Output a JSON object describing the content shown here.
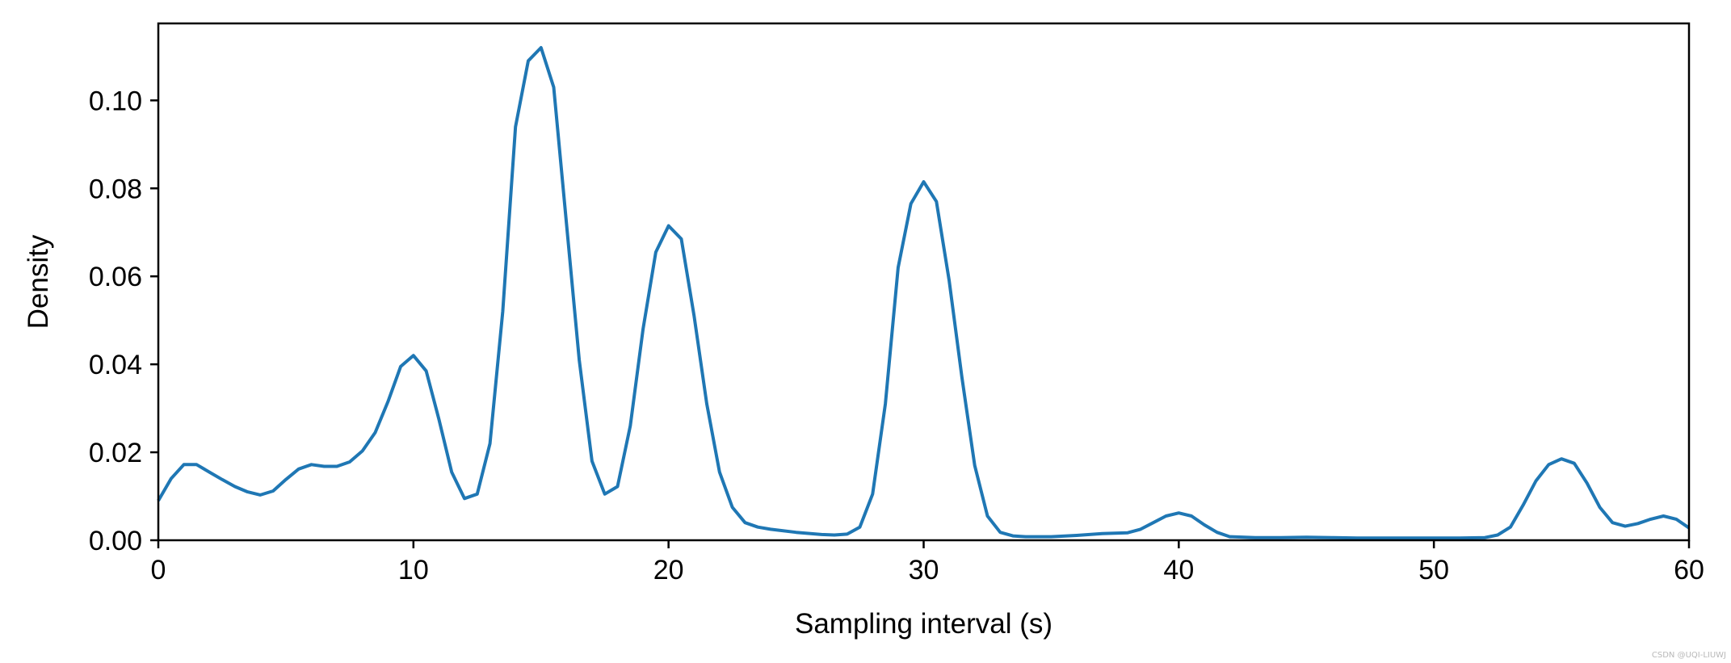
{
  "watermark": "CSDN @UQI-LIUWJ",
  "chart_data": {
    "type": "line",
    "title": "",
    "xlabel": "Sampling interval (s)",
    "ylabel": "Density",
    "xlim": [
      0,
      60
    ],
    "ylim": [
      0,
      0.1175
    ],
    "xticks": [
      0,
      10,
      20,
      30,
      40,
      50,
      60
    ],
    "xtick_labels": [
      "0",
      "10",
      "20",
      "30",
      "40",
      "50",
      "60"
    ],
    "yticks": [
      0,
      0.02,
      0.04,
      0.06,
      0.08,
      0.1
    ],
    "ytick_labels": [
      "0.00",
      "0.02",
      "0.04",
      "0.06",
      "0.08",
      "0.10"
    ],
    "grid": false,
    "legend": "none",
    "color": "#1f77b4",
    "series": [
      {
        "x": [
          0,
          0.5,
          1,
          1.5,
          2,
          2.5,
          3,
          3.5,
          4,
          4.5,
          5,
          5.5,
          6,
          6.5,
          7,
          7.5,
          8,
          8.5,
          9,
          9.5,
          10,
          10.5,
          11,
          11.5,
          12,
          12.5,
          13,
          13.5,
          14,
          14.5,
          15,
          15.5,
          16,
          16.5,
          17,
          17.5,
          18,
          18.5,
          19,
          19.5,
          20,
          20.5,
          21,
          21.5,
          22,
          22.5,
          23,
          23.5,
          24,
          25,
          26,
          26.5,
          27,
          27.5,
          28,
          28.5,
          29,
          29.5,
          30,
          30.5,
          31,
          31.5,
          32,
          32.5,
          33,
          33.5,
          34,
          35,
          36,
          37,
          38,
          38.5,
          39,
          39.5,
          40,
          40.5,
          41,
          41.5,
          42,
          43,
          44,
          45,
          46,
          47,
          48,
          49,
          50,
          51,
          52,
          52.5,
          53,
          53.5,
          54,
          54.5,
          55,
          55.5,
          56,
          56.5,
          57,
          57.5,
          58,
          58.5,
          59,
          59.5,
          60
        ],
        "y": [
          0.009,
          0.014,
          0.0172,
          0.0172,
          0.0155,
          0.0138,
          0.0122,
          0.011,
          0.0103,
          0.0112,
          0.0138,
          0.0162,
          0.0172,
          0.0168,
          0.0168,
          0.0178,
          0.0203,
          0.0245,
          0.0315,
          0.0395,
          0.042,
          0.0385,
          0.0275,
          0.0155,
          0.0095,
          0.0105,
          0.022,
          0.052,
          0.094,
          0.109,
          0.112,
          0.103,
          0.072,
          0.041,
          0.018,
          0.0105,
          0.0122,
          0.026,
          0.048,
          0.0655,
          0.0715,
          0.0685,
          0.051,
          0.031,
          0.0155,
          0.0075,
          0.004,
          0.003,
          0.0025,
          0.0018,
          0.0013,
          0.0012,
          0.0014,
          0.003,
          0.0105,
          0.031,
          0.062,
          0.0765,
          0.0815,
          0.077,
          0.059,
          0.037,
          0.017,
          0.0055,
          0.0018,
          0.001,
          0.0008,
          0.0008,
          0.0011,
          0.0015,
          0.0017,
          0.0025,
          0.004,
          0.0055,
          0.0062,
          0.0055,
          0.0035,
          0.0018,
          0.0008,
          0.0006,
          0.0006,
          0.0007,
          0.0006,
          0.0005,
          0.0005,
          0.0005,
          0.0005,
          0.0005,
          0.0006,
          0.0012,
          0.003,
          0.008,
          0.0135,
          0.0172,
          0.0185,
          0.0175,
          0.013,
          0.0075,
          0.004,
          0.0032,
          0.0038,
          0.0048,
          0.0055,
          0.0048,
          0.0028
        ]
      }
    ]
  }
}
